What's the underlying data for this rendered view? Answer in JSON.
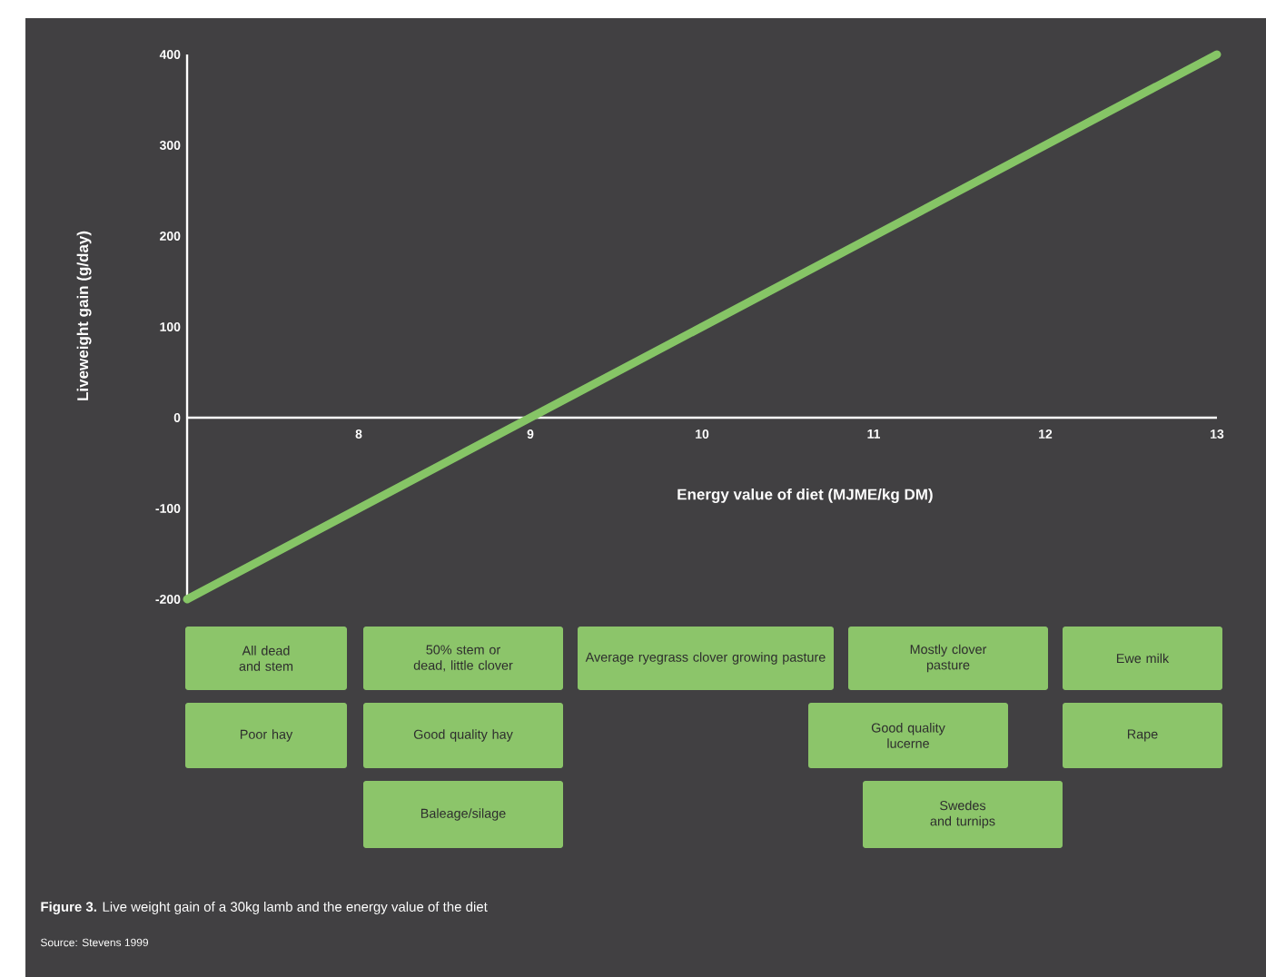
{
  "chart_data": {
    "type": "line",
    "xlabel": "Energy value of diet (MJME/kg DM)",
    "ylabel": "Liveweight gain (g/day)",
    "x": [
      7,
      13
    ],
    "series": [
      {
        "color": "#86c566",
        "values": [
          -200,
          400
        ]
      }
    ],
    "xlim": [
      7,
      13
    ],
    "ylim": [
      -200,
      400
    ],
    "xticks": [
      8,
      9,
      10,
      11,
      12,
      13
    ],
    "yticks": [
      -200,
      -100,
      0,
      100,
      200,
      300,
      400
    ],
    "line_style": "solid",
    "annotations": [
      "All dead and stem",
      "50% stem or dead, little clover",
      "Average ryegrass clover growing pasture",
      "Mostly clover pasture",
      "Ewe milk",
      "Poor hay",
      "Good quality hay",
      "Good quality lucerne",
      "Rape",
      "Baleage/silage",
      "Swedes and turnips",
      "**Figure 3.** Live weight gain of a 30kg lamb and the energy value of the diet",
      "Source: Stevens 1999"
    ]
  }
}
